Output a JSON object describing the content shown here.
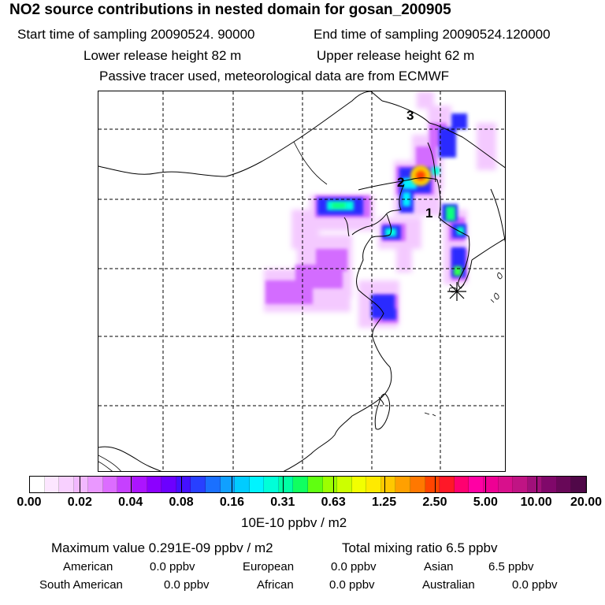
{
  "header": {
    "title": "NO2 source contributions in nested domain for gosan_200905",
    "start_sampling": "Start time of sampling 20090524. 90000",
    "end_sampling": "End time of sampling 20090524.120000",
    "lower_release": "Lower release height   82 m",
    "upper_release": "Upper release height   62 m",
    "tracer_note": "Passive tracer used, meteorological data are from ECMWF"
  },
  "map": {
    "region_labels": [
      "1",
      "2",
      "3"
    ],
    "receptor_marker": "gosan-receptor-star-icon"
  },
  "colorbar": {
    "colors": [
      "#ffffff",
      "#fce6ff",
      "#f8d0ff",
      "#f2b8ff",
      "#ea98ff",
      "#dc6cff",
      "#c640ff",
      "#ac14ff",
      "#8c00ff",
      "#6c00ff",
      "#4410ff",
      "#2840ff",
      "#1a70ff",
      "#10a0ff",
      "#00ccff",
      "#00f4ff",
      "#00ffd8",
      "#00ffa4",
      "#10ff60",
      "#60ff10",
      "#9cff00",
      "#ccff00",
      "#f2ff00",
      "#ffea00",
      "#ffc800",
      "#ffa000",
      "#ff7800",
      "#ff4400",
      "#ff1828",
      "#ff0070",
      "#ff00a4",
      "#ee0094",
      "#d8108c",
      "#c01484",
      "#a0107a",
      "#80086a",
      "#680858",
      "#500848"
    ],
    "ticks": [
      "0.00",
      "0.02",
      "0.04",
      "0.08",
      "0.16",
      "0.31",
      "0.63",
      "1.25",
      "2.50",
      "5.00",
      "10.00",
      "20.00"
    ],
    "unit": "10E-10 ppbv / m2"
  },
  "footer": {
    "max_value": "Maximum value  0.291E-09 ppbv / m2",
    "total_mixing": "Total mixing ratio        6.5 ppbv",
    "american": "American",
    "american_val": "0.0 ppbv",
    "european": "European",
    "european_val": "0.0 ppbv",
    "asian": "Asian",
    "asian_val": "6.5 ppbv",
    "south_american": "South American",
    "south_american_val": "0.0 ppbv",
    "african": "African",
    "african_val": "0.0 ppbv",
    "australian": "Australian",
    "australian_val": "0.0 ppbv"
  }
}
